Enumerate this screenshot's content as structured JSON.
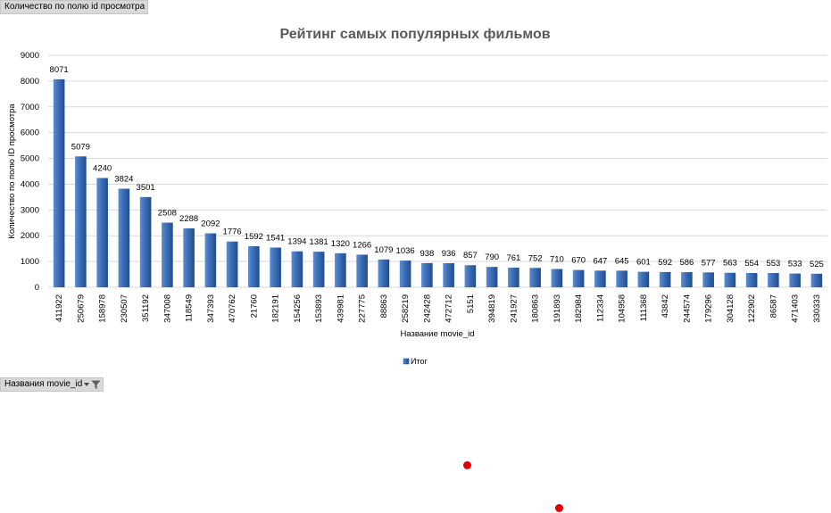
{
  "pivot": {
    "value_field_label": "Количество по полю id просмотра",
    "axis_field_label": "Названия movie_id"
  },
  "colors": {
    "bar_top": "#5a8ed6",
    "bar_mid": "#3c6db4",
    "bar_bottom": "#1f4d8f",
    "grid": "#d9d9d9",
    "marker": "#e00000"
  },
  "chart_data": {
    "type": "bar",
    "title": "Рейтинг самых популярных фильмов",
    "xlabel": "Название movie_id",
    "ylabel": "Количество по полю ID просмотра",
    "ylim": [
      0,
      9000
    ],
    "yticks": [
      0,
      1000,
      2000,
      3000,
      4000,
      5000,
      6000,
      7000,
      8000,
      9000
    ],
    "grid": true,
    "legend": "bottom",
    "categories": [
      "411922",
      "250679",
      "158978",
      "230507",
      "351192",
      "347008",
      "118549",
      "347393",
      "470762",
      "21760",
      "182191",
      "154256",
      "153893",
      "439981",
      "227775",
      "88863",
      "258219",
      "242428",
      "472712",
      "5151",
      "394819",
      "241927",
      "180863",
      "191893",
      "182984",
      "112334",
      "104958",
      "111368",
      "43842",
      "244574",
      "179296",
      "304128",
      "122902",
      "86587",
      "471403",
      "330333"
    ],
    "series": [
      {
        "name": "Итог",
        "values": [
          8071,
          5079,
          4240,
          3824,
          3501,
          2508,
          2288,
          2092,
          1776,
          1592,
          1541,
          1394,
          1381,
          1320,
          1266,
          1079,
          1036,
          938,
          936,
          857,
          790,
          761,
          752,
          710,
          670,
          647,
          645,
          601,
          592,
          586,
          577,
          563,
          554,
          553,
          533,
          525
        ]
      }
    ]
  }
}
